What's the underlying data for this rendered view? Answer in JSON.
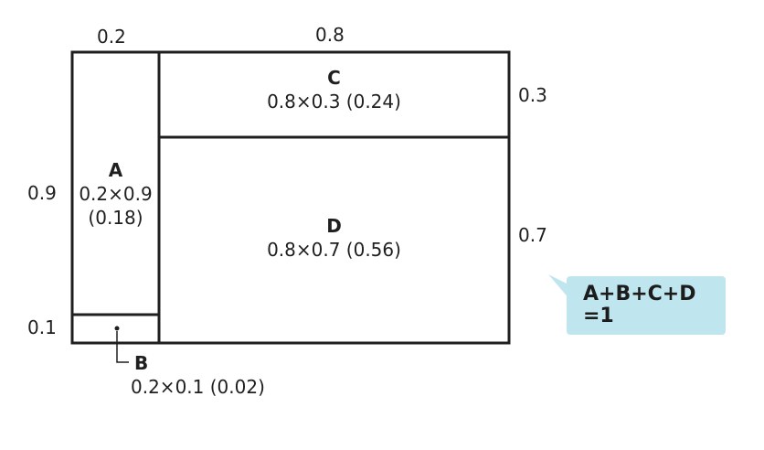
{
  "dimensions": {
    "width_top_a": "0.2",
    "width_top_cd": "0.8",
    "height_left_a": "0.9",
    "height_left_b": "0.1",
    "height_right_c": "0.3",
    "height_right_d": "0.7"
  },
  "regions": {
    "a": {
      "letter": "A",
      "expr": "0.2×0.9",
      "value": "(0.18)"
    },
    "b": {
      "letter": "B",
      "expr": "0.2×0.1 (0.02)"
    },
    "c": {
      "letter": "C",
      "expr": "0.8×0.3 (0.24)"
    },
    "d": {
      "letter": "D",
      "expr": "0.8×0.7 (0.56)"
    }
  },
  "callout": {
    "line1": "A+B+C+D",
    "line2": "=1"
  },
  "colors": {
    "stroke": "#1f1f1f",
    "callout_bg": "#bfe6ef"
  }
}
